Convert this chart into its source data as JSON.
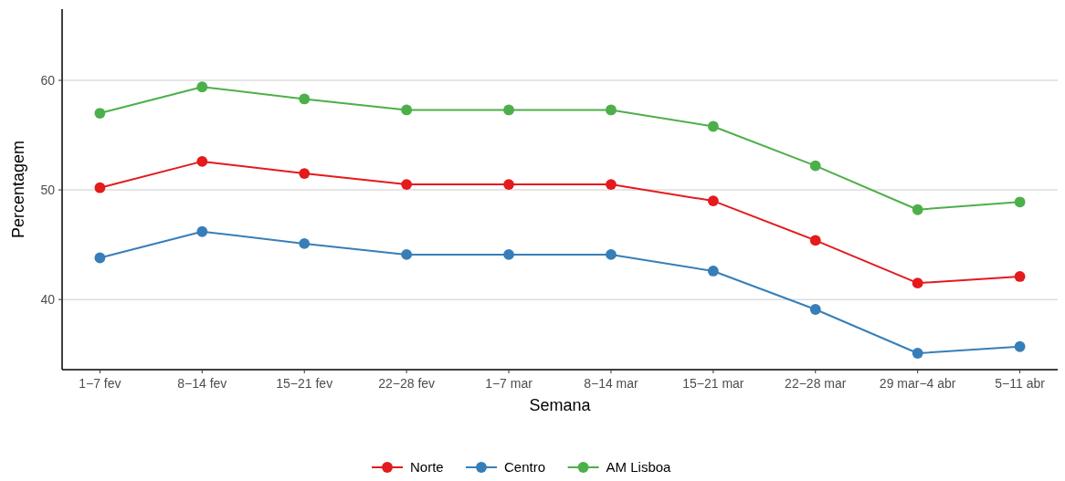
{
  "chart_data": {
    "type": "line",
    "xlabel": "Semana",
    "ylabel": "Percentagem",
    "categories": [
      "1−7 fev",
      "8−14 fev",
      "15−21 fev",
      "22−28 fev",
      "1−7 mar",
      "8−14 mar",
      "15−21 mar",
      "22−28 mar",
      "29 mar−4 abr",
      "5−11 abr"
    ],
    "series": [
      {
        "name": "Norte",
        "color": "#e41a1c",
        "values": [
          50.2,
          52.6,
          51.5,
          50.5,
          50.5,
          50.5,
          49.0,
          45.4,
          41.5,
          42.1
        ]
      },
      {
        "name": "Centro",
        "color": "#377eb8",
        "values": [
          43.8,
          46.2,
          45.1,
          44.1,
          44.1,
          44.1,
          42.6,
          39.1,
          35.1,
          35.7
        ]
      },
      {
        "name": "AM Lisboa",
        "color": "#4daf4a",
        "values": [
          57.0,
          59.4,
          58.3,
          57.3,
          57.3,
          57.3,
          55.8,
          52.2,
          48.2,
          48.9
        ]
      }
    ],
    "ylim": [
      33.6,
      66.5
    ],
    "yticks": [
      40,
      50,
      60
    ],
    "grid": "y",
    "legend": "bottom",
    "marker": "circle",
    "line_style": "solid"
  }
}
